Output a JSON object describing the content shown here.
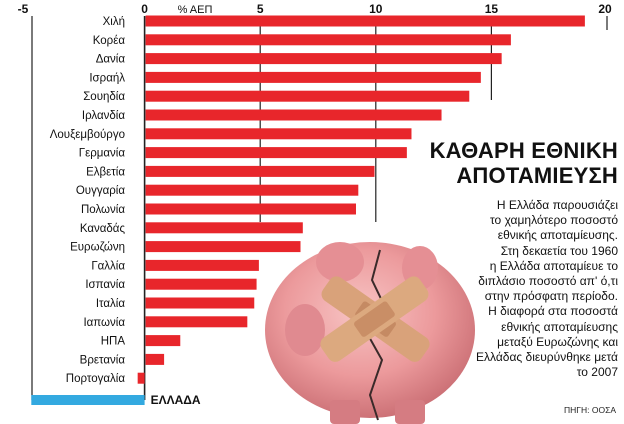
{
  "chart_data": {
    "type": "bar",
    "orientation": "horizontal",
    "title_lines": [
      "ΚΑΘΑΡΗ ΕΘΝΙΚΗ",
      "ΑΠΟΤΑΜΙΕΥΣΗ"
    ],
    "unit_label": "% ΑΕΠ",
    "xlim": [
      -5,
      20
    ],
    "xticks": [
      -5,
      0,
      5,
      10,
      15,
      20
    ],
    "grid": true,
    "bar_color": "#e8262b",
    "categories": [
      "Χιλή",
      "Κορέα",
      "Δανία",
      "Ισραήλ",
      "Σουηδία",
      "Ιρλανδία",
      "Λουξεμβούργο",
      "Γερμανία",
      "Ελβετία",
      "Ουγγαρία",
      "Πολωνία",
      "Καναδάς",
      "Ευρωζώνη",
      "Γαλλία",
      "Ισπανία",
      "Ιταλία",
      "Ιαπωνία",
      "ΗΠΑ",
      "Βρετανία",
      "Πορτογαλία"
    ],
    "values": [
      19.0,
      15.8,
      15.4,
      14.5,
      14.0,
      12.8,
      11.5,
      11.3,
      9.9,
      9.2,
      9.1,
      6.8,
      6.7,
      4.9,
      4.8,
      4.7,
      4.4,
      1.5,
      0.8,
      -0.3
    ],
    "highlight": {
      "label": "ΕΛΛΑΔΑ",
      "value": -4.9,
      "color": "#33a9e0"
    }
  },
  "text": {
    "body": [
      "Η Ελλάδα παρουσιάζει",
      "το χαμηλότερο ποσοστό",
      "εθνικής αποταμίευσης.",
      "Στη δεκαετία του 1960",
      "η Ελλάδα αποταμίευε το",
      "διπλάσιο ποσοστό απ' ό,τι",
      "στην πρόσφατη περίοδο.",
      "Η διαφορά στα ποσοστά",
      "εθνικής αποταμίευσης",
      "μεταξύ Ευρωζώνης και",
      "Ελλάδας διευρύνθηκε μετά",
      "το 2007"
    ],
    "source": "ΠΗΓΗ: ΟΟΣΑ"
  }
}
